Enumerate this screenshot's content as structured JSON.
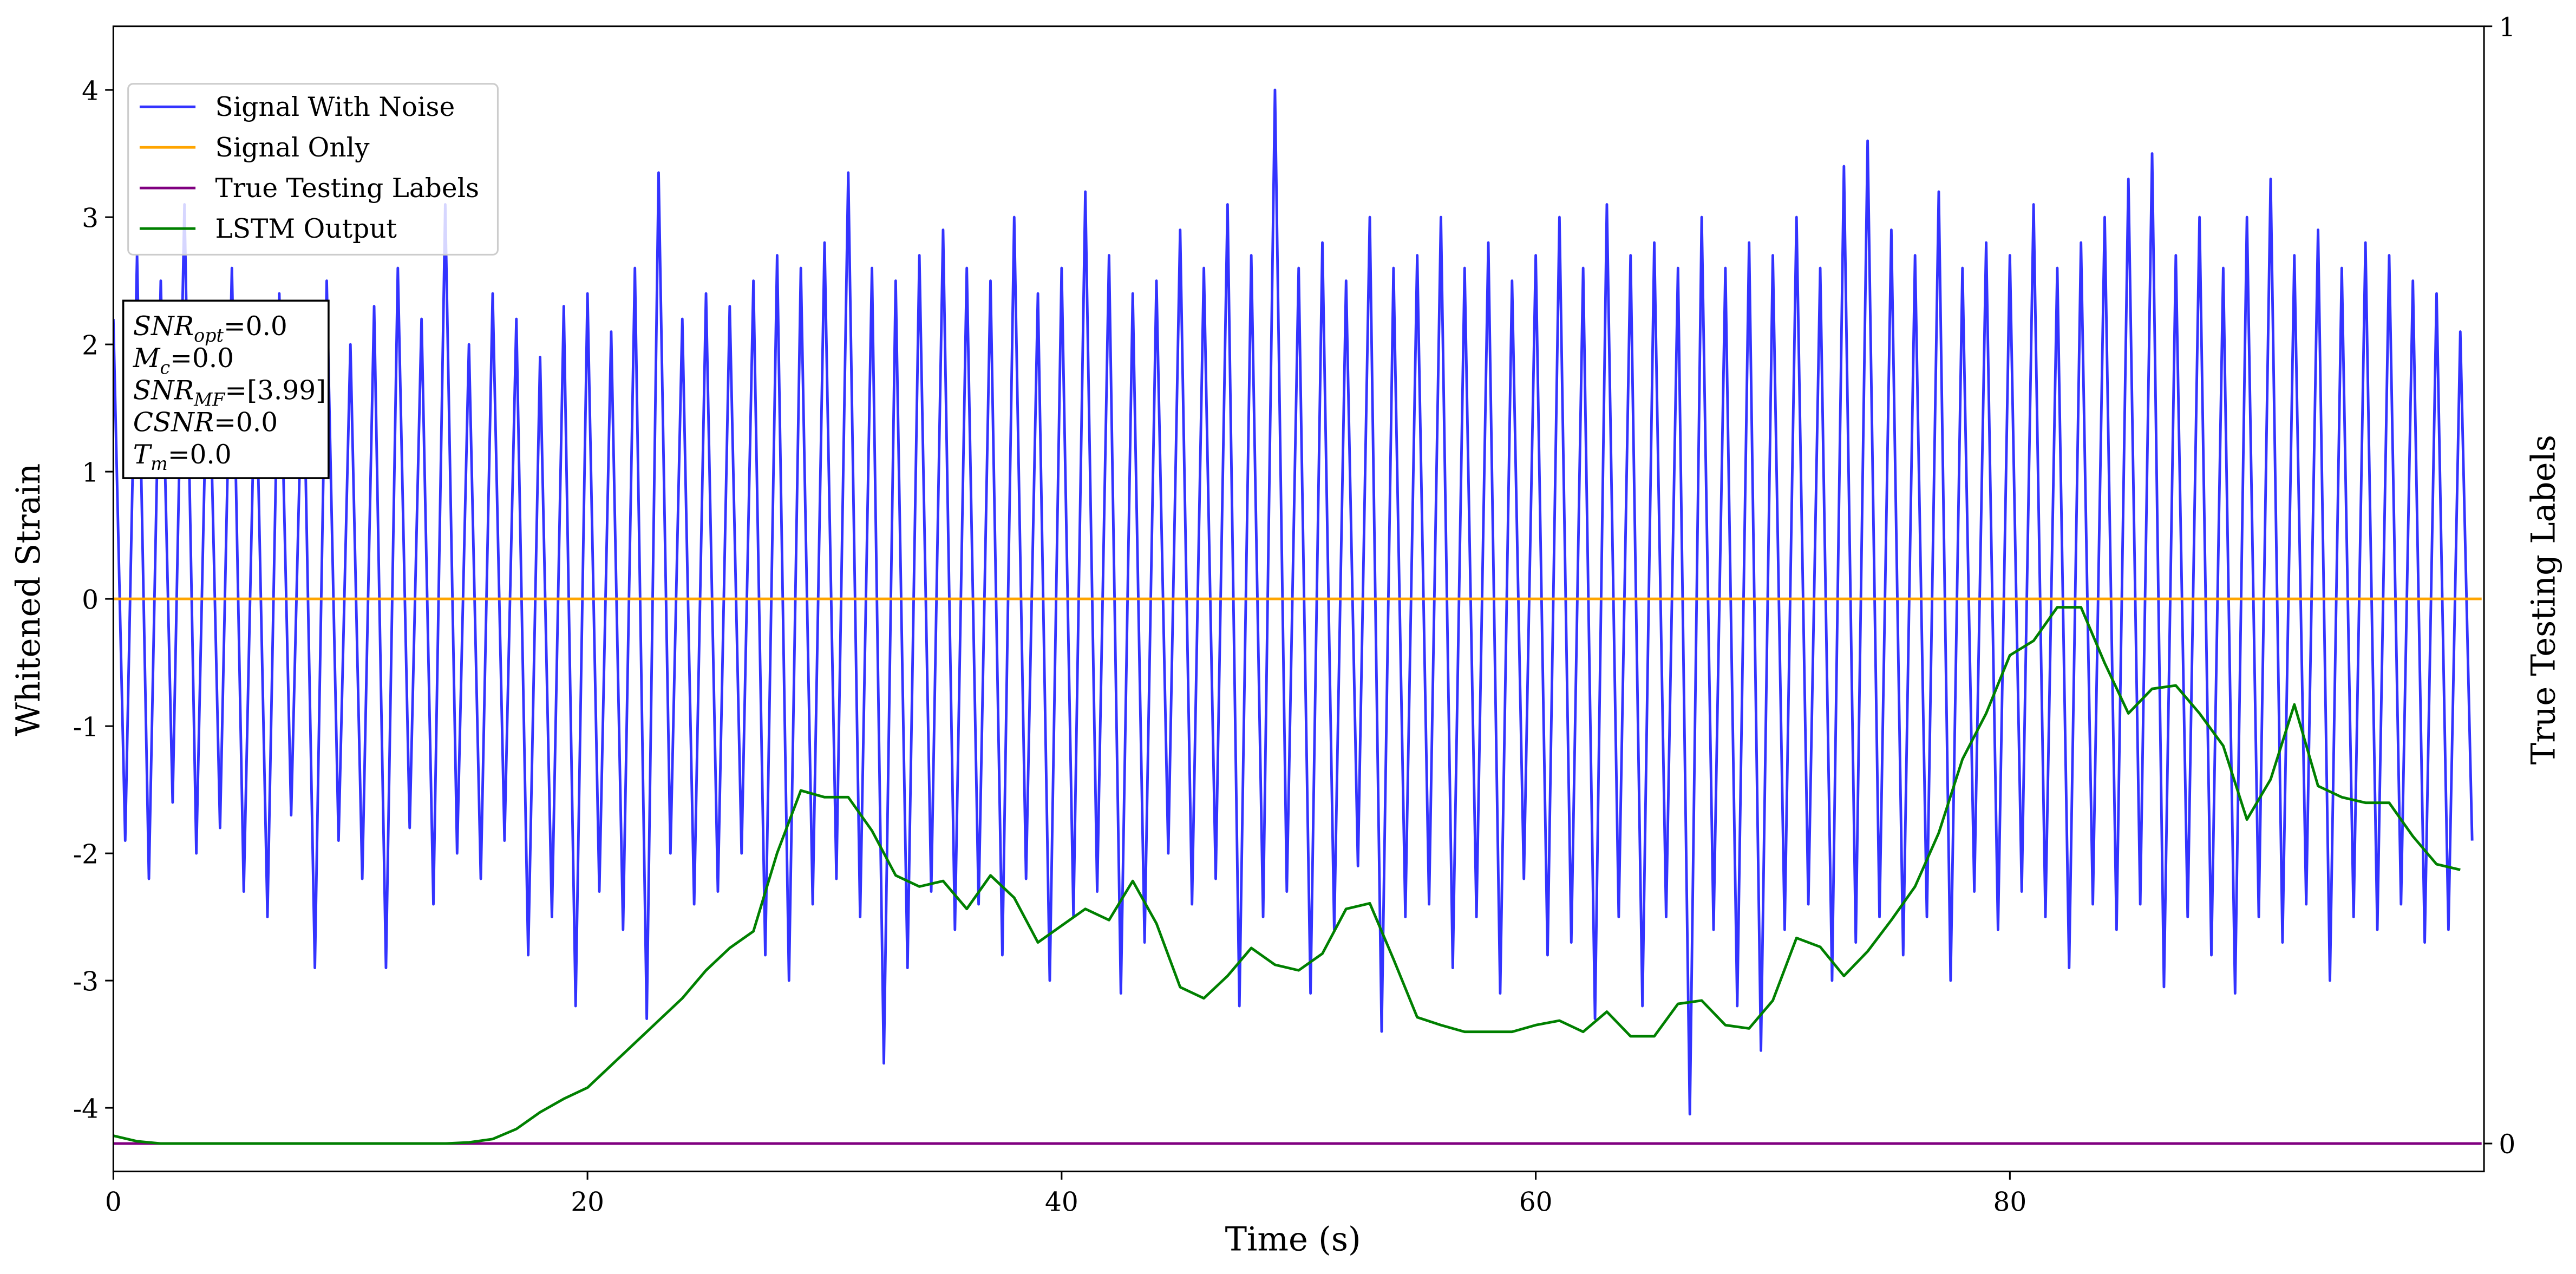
{
  "chart_data": {
    "type": "line",
    "xlabel": "Time (s)",
    "ylabel": "Whitened Strain",
    "y2label": "True Testing Labels",
    "xlim": [
      0,
      100
    ],
    "ylim": [
      -4.5,
      4.5
    ],
    "y2lim": [
      -0.025,
      1.0
    ],
    "xticks": [
      0,
      20,
      40,
      60,
      80
    ],
    "yticks": [
      -4,
      -3,
      -2,
      -1,
      0,
      1,
      2,
      3,
      4
    ],
    "y2ticks": [
      0,
      1
    ],
    "legend": "upper left",
    "annotation": [
      {
        "main": "SNR",
        "sub": "opt",
        "rest": "=0.0"
      },
      {
        "main": "M",
        "sub": "c",
        "rest": "=0.0"
      },
      {
        "main": "SNR",
        "sub": "MF",
        "rest": "=[3.99]"
      },
      {
        "main": "CSNR",
        "sub": null,
        "rest": "=0.0"
      },
      {
        "main": "T",
        "sub": "m",
        "rest": "=0.0"
      }
    ],
    "series": [
      {
        "name": "Signal With Noise",
        "color": "#3333ff",
        "x": [
          0,
          0.5,
          1,
          1.5,
          2,
          2.5,
          3,
          3.5,
          4,
          4.5,
          5,
          5.5,
          6,
          6.5,
          7,
          7.5,
          8,
          8.5,
          9,
          9.5,
          10,
          10.5,
          11,
          11.5,
          12,
          12.5,
          13,
          13.5,
          14,
          14.5,
          15,
          15.5,
          16,
          16.5,
          17,
          17.5,
          18,
          18.5,
          19,
          19.5,
          20,
          20.5,
          21,
          21.5,
          22,
          22.5,
          23,
          23.5,
          24,
          24.5,
          25,
          25.5,
          26,
          26.5,
          27,
          27.5,
          28,
          28.5,
          29,
          29.5,
          30,
          30.5,
          31,
          31.5,
          32,
          32.5,
          33,
          33.5,
          34,
          34.5,
          35,
          35.5,
          36,
          36.5,
          37,
          37.5,
          38,
          38.5,
          39,
          39.5,
          40,
          40.5,
          41,
          41.5,
          42,
          42.5,
          43,
          43.5,
          44,
          44.5,
          45,
          45.5,
          46,
          46.5,
          47,
          47.5,
          48,
          48.5,
          49,
          49.5,
          50,
          50.5,
          51,
          51.5,
          52,
          52.5,
          53,
          53.5,
          54,
          54.5,
          55,
          55.5,
          56,
          56.5,
          57,
          57.5,
          58,
          58.5,
          59,
          59.5,
          60,
          60.5,
          61,
          61.5,
          62,
          62.5,
          63,
          63.5,
          64,
          64.5,
          65,
          65.5,
          66,
          66.5,
          67,
          67.5,
          68,
          68.5,
          69,
          69.5,
          70,
          70.5,
          71,
          71.5,
          72,
          72.5,
          73,
          73.5,
          74,
          74.5,
          75,
          75.5,
          76,
          76.5,
          77,
          77.5,
          78,
          78.5,
          79,
          79.5,
          80,
          80.5,
          81,
          81.5,
          82,
          82.5,
          83,
          83.5,
          84,
          84.5,
          85,
          85.5,
          86,
          86.5,
          87,
          87.5,
          88,
          88.5,
          89,
          89.5,
          90,
          90.5,
          91,
          91.5,
          92,
          92.5,
          93,
          93.5,
          94,
          94.5,
          95,
          95.5,
          96,
          96.5,
          97,
          97.5,
          98,
          98.5,
          99,
          99.5
        ],
        "values": [
          2.2,
          -1.9,
          2.7,
          -2.2,
          2.5,
          -1.6,
          3.1,
          -2.0,
          2.3,
          -1.8,
          2.6,
          -2.3,
          2.0,
          -2.5,
          2.4,
          -1.7,
          2.1,
          -2.9,
          2.5,
          -1.9,
          2.0,
          -2.2,
          2.3,
          -2.9,
          2.6,
          -1.8,
          2.2,
          -2.4,
          3.1,
          -2.0,
          2.0,
          -2.2,
          2.4,
          -1.9,
          2.2,
          -2.8,
          1.9,
          -2.5,
          2.3,
          -3.2,
          2.4,
          -2.3,
          2.1,
          -2.6,
          2.6,
          -3.3,
          3.35,
          -2.0,
          2.2,
          -2.4,
          2.4,
          -2.3,
          2.3,
          -2.0,
          2.5,
          -2.8,
          2.7,
          -3.0,
          2.6,
          -2.4,
          2.8,
          -2.2,
          3.35,
          -2.5,
          2.6,
          -3.65,
          2.5,
          -2.9,
          2.7,
          -2.3,
          2.9,
          -2.6,
          2.6,
          -2.4,
          2.5,
          -2.8,
          3.0,
          -2.2,
          2.4,
          -3.0,
          2.6,
          -2.5,
          3.2,
          -2.3,
          2.7,
          -3.1,
          2.4,
          -2.7,
          2.5,
          -2.0,
          2.9,
          -2.4,
          2.6,
          -2.2,
          3.1,
          -3.2,
          2.7,
          -2.5,
          4.0,
          -2.3,
          2.6,
          -3.1,
          2.8,
          -2.6,
          2.5,
          -2.1,
          3.0,
          -3.4,
          2.6,
          -2.5,
          2.7,
          -2.4,
          3.0,
          -2.9,
          2.6,
          -2.5,
          2.8,
          -3.1,
          2.5,
          -2.2,
          2.7,
          -2.8,
          3.0,
          -2.7,
          2.6,
          -3.3,
          3.1,
          -2.5,
          2.7,
          -3.2,
          2.8,
          -2.5,
          2.6,
          -4.05,
          3.0,
          -2.6,
          2.6,
          -3.2,
          2.8,
          -3.55,
          2.7,
          -2.6,
          3.0,
          -2.4,
          2.6,
          -3.0,
          3.4,
          -2.7,
          3.6,
          -2.5,
          2.9,
          -2.8,
          2.7,
          -2.5,
          3.2,
          -3.0,
          2.6,
          -2.3,
          2.8,
          -2.6,
          2.7,
          -2.3,
          3.1,
          -2.5,
          2.6,
          -2.9,
          2.8,
          -2.4,
          3.0,
          -2.6,
          3.3,
          -2.4,
          3.5,
          -3.05,
          2.7,
          -2.5,
          3.0,
          -2.8,
          2.6,
          -3.1,
          3.0,
          -2.5,
          3.3,
          -2.7,
          2.7,
          -2.4,
          2.9,
          -3.0,
          2.6,
          -2.5,
          2.8,
          -2.6,
          2.7,
          -2.4,
          2.5,
          -2.7,
          2.4,
          -2.6,
          2.1,
          -1.9
        ]
      },
      {
        "name": "Signal Only",
        "color": "#ffa500",
        "x": [
          0,
          99.9
        ],
        "values": [
          0,
          0
        ]
      },
      {
        "name": "True Testing Labels",
        "color": "#800080",
        "axis": "y2",
        "x": [
          0,
          99.9
        ],
        "values": [
          0,
          0
        ]
      },
      {
        "name": "LSTM Output",
        "color": "#008000",
        "axis": "y2",
        "x": [
          0,
          1,
          2,
          3,
          4,
          5,
          6,
          7,
          8,
          9,
          10,
          11,
          12,
          13,
          14,
          15,
          16,
          17,
          18,
          19,
          20,
          21,
          22,
          23,
          24,
          25,
          26,
          27,
          28,
          29,
          30,
          31,
          32,
          33,
          34,
          35,
          36,
          37,
          38,
          39,
          40,
          41,
          42,
          43,
          44,
          45,
          46,
          47,
          48,
          49,
          50,
          51,
          52,
          53,
          54,
          55,
          56,
          57,
          58,
          59,
          60,
          61,
          62,
          63,
          64,
          65,
          66,
          67,
          68,
          69,
          70,
          71,
          72,
          73,
          74,
          75,
          76,
          77,
          78,
          79,
          80,
          81,
          82,
          83,
          84,
          85,
          86,
          87,
          88,
          89,
          90,
          91,
          92,
          93,
          94,
          95,
          96,
          97,
          98,
          99
        ],
        "values": [
          0.007,
          0.002,
          0,
          0,
          0,
          0,
          0,
          0,
          0,
          0,
          0,
          0,
          0,
          0,
          0,
          0.001,
          0.004,
          0.013,
          0.028,
          0.04,
          0.05,
          0.07,
          0.09,
          0.11,
          0.13,
          0.155,
          0.175,
          0.19,
          0.26,
          0.316,
          0.31,
          0.31,
          0.28,
          0.24,
          0.23,
          0.235,
          0.21,
          0.24,
          0.22,
          0.18,
          0.195,
          0.21,
          0.2,
          0.235,
          0.197,
          0.14,
          0.13,
          0.15,
          0.175,
          0.16,
          0.155,
          0.17,
          0.21,
          0.215,
          0.165,
          0.113,
          0.106,
          0.1,
          0.1,
          0.1,
          0.106,
          0.11,
          0.1,
          0.118,
          0.096,
          0.096,
          0.125,
          0.128,
          0.106,
          0.103,
          0.128,
          0.184,
          0.176,
          0.15,
          0.172,
          0.2,
          0.23,
          0.278,
          0.344,
          0.385,
          0.437,
          0.45,
          0.48,
          0.48,
          0.43,
          0.385,
          0.407,
          0.41,
          0.385,
          0.356,
          0.29,
          0.326,
          0.393,
          0.32,
          0.31,
          0.305,
          0.305,
          0.275,
          0.25,
          0.245
        ]
      }
    ]
  }
}
